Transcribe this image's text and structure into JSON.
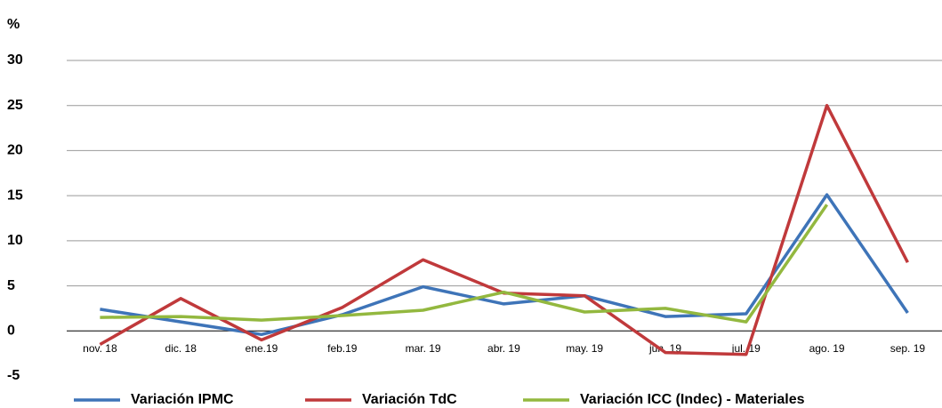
{
  "chart_data": {
    "type": "line",
    "y_axis_label": "%",
    "categories": [
      "nov. 18",
      "dic. 18",
      "ene.19",
      "feb.19",
      "mar. 19",
      "abr. 19",
      "may. 19",
      "jun. 19",
      "jul. 19",
      "ago. 19",
      "sep. 19"
    ],
    "series": [
      {
        "name": "Variación IPMC",
        "color": "#3e74b8",
        "values": [
          2.4,
          1.0,
          -0.4,
          1.8,
          4.9,
          3.0,
          3.9,
          1.6,
          1.9,
          15.1,
          2.0
        ]
      },
      {
        "name": "Variación TdC",
        "color": "#c0393b",
        "values": [
          -1.5,
          3.6,
          -1.0,
          2.6,
          7.9,
          4.2,
          3.9,
          -2.4,
          -2.6,
          25.0,
          7.6
        ]
      },
      {
        "name": "Variación ICC (Indec) - Materiales",
        "color": "#93b83f",
        "values": [
          1.5,
          1.6,
          1.2,
          1.7,
          2.3,
          4.3,
          2.1,
          2.5,
          1.0,
          14.0,
          null
        ]
      }
    ],
    "ylim": [
      -5,
      30
    ],
    "yticks": [
      -5,
      0,
      5,
      10,
      15,
      20,
      25,
      30
    ],
    "grid": true,
    "legend": "bottom"
  }
}
